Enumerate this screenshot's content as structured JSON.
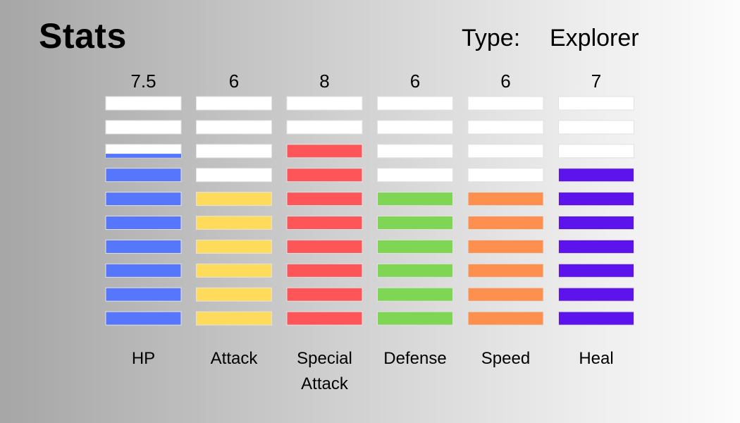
{
  "header": {
    "title": "Stats",
    "type_label": "Type:",
    "type_value": "Explorer"
  },
  "chart_data": {
    "type": "bar",
    "style": "segmented-columns",
    "segments": 10,
    "categories": [
      "HP",
      "Attack",
      "Special Attack",
      "Defense",
      "Speed",
      "Heal"
    ],
    "value_labels": [
      "7.5",
      "6",
      "8",
      "6",
      "6",
      "7"
    ],
    "values": [
      7.5,
      6,
      8,
      6,
      6,
      7
    ],
    "ylim": [
      0,
      10
    ],
    "colors": [
      "#5676fb",
      "#fedb5b",
      "#fe5658",
      "#7fd654",
      "#fd904f",
      "#5d13ec"
    ],
    "empty_color": "#ffffff"
  }
}
